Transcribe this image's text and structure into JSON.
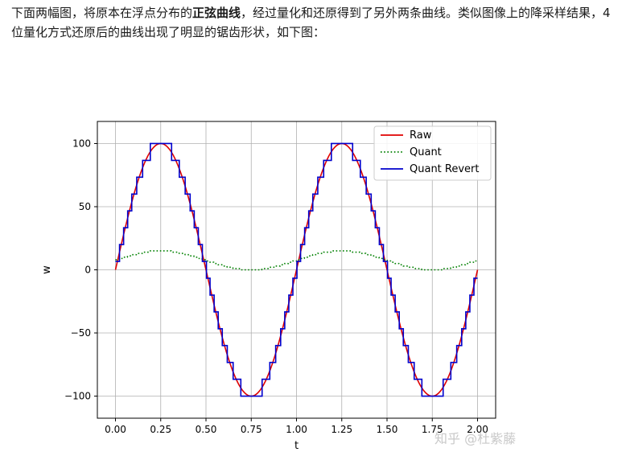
{
  "article": {
    "para_before": "下面两幅图，将原本在浮点分布的",
    "para_bold": "正弦曲线",
    "para_after": "，经过量化和还原得到了另外两条曲线。类似图像上的降采样结果，4 位量化方式还原后的曲线出现了明显的锯齿形状，如下图："
  },
  "watermark": "知乎 @杜紫藤",
  "chart_data": {
    "type": "line",
    "title": "",
    "xlabel": "t",
    "ylabel": "w",
    "xlim": [
      -0.1,
      2.1
    ],
    "ylim": [
      -117.5,
      117.5
    ],
    "grid": true,
    "legend_position": "top-right",
    "xticks": [
      0.0,
      0.25,
      0.5,
      0.75,
      1.0,
      1.25,
      1.5,
      1.75,
      2.0
    ],
    "xtick_labels": [
      "0.00",
      "0.25",
      "0.50",
      "0.75",
      "1.00",
      "1.25",
      "1.50",
      "1.75",
      "2.00"
    ],
    "yticks": [
      100,
      50,
      0,
      -50,
      -100
    ],
    "ytick_labels": [
      "100",
      "50",
      "0",
      "−50",
      "−100"
    ],
    "function": "w = 100·sin(2π·t), t ∈ [0, 2]",
    "quantization": {
      "bits": 4,
      "levels": 16,
      "min": -100,
      "max": 100
    },
    "series": [
      {
        "name": "Raw",
        "style": "solid",
        "color": "#e00000",
        "x": [
          0.0,
          0.125,
          0.25,
          0.375,
          0.5,
          0.625,
          0.75,
          0.875,
          1.0,
          1.125,
          1.25,
          1.375,
          1.5,
          1.625,
          1.75,
          1.875,
          2.0
        ],
        "values": [
          0,
          70.7,
          100,
          70.7,
          0,
          -70.7,
          -100,
          -70.7,
          0,
          70.7,
          100,
          70.7,
          0,
          -70.7,
          -100,
          -70.7,
          0
        ]
      },
      {
        "name": "Quant",
        "style": "dotted",
        "color": "#008000",
        "x": [
          0.0,
          0.25,
          0.5,
          0.75,
          1.0,
          1.25,
          1.5,
          1.75,
          2.0
        ],
        "values": [
          8,
          15,
          8,
          0,
          8,
          15,
          8,
          0,
          8
        ]
      },
      {
        "name": "Quant Revert",
        "style": "solid",
        "color": "#0000cc",
        "x": [
          0.0,
          0.25,
          0.5,
          0.75,
          1.0,
          1.25,
          1.5,
          1.75,
          2.0
        ],
        "values": [
          6.7,
          100,
          6.7,
          -100,
          6.7,
          100,
          6.7,
          -100,
          6.7
        ]
      }
    ]
  }
}
